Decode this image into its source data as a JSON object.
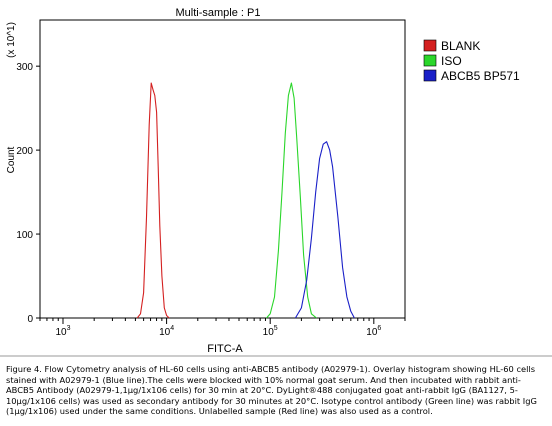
{
  "chart_data": {
    "type": "line",
    "title": "Multi-sample : P1",
    "xlabel": "FITC-A",
    "ylabel": "Count",
    "y_multiplier": "(x 10^1)",
    "x_scale": "log",
    "xlim": [
      600,
      2000000
    ],
    "ylim": [
      0,
      355
    ],
    "x_ticks": [
      {
        "value": 1000,
        "base": "10",
        "exp": "3"
      },
      {
        "value": 10000,
        "base": "10",
        "exp": "4"
      },
      {
        "value": 100000,
        "base": "10",
        "exp": "5"
      },
      {
        "value": 1000000,
        "base": "10",
        "exp": "6"
      }
    ],
    "y_ticks": [
      "0",
      "100",
      "200",
      "300"
    ],
    "y_tick_values": [
      0,
      100,
      200,
      300
    ],
    "legend_position": "right",
    "series": [
      {
        "name": "BLANK",
        "color": "#d42020",
        "x": [
          5200,
          5600,
          6000,
          6400,
          6800,
          7100,
          7400,
          7700,
          8000,
          8300,
          8600,
          9000,
          9500,
          10000,
          10600
        ],
        "y": [
          0,
          5,
          30,
          120,
          230,
          280,
          272,
          265,
          245,
          180,
          110,
          50,
          12,
          3,
          0
        ]
      },
      {
        "name": "ISO",
        "color": "#2ad62a",
        "x": [
          92000,
          100000,
          110000,
          120000,
          130000,
          140000,
          150000,
          160000,
          170000,
          180000,
          195000,
          210000,
          230000,
          250000,
          280000
        ],
        "y": [
          0,
          5,
          25,
          80,
          150,
          220,
          265,
          280,
          262,
          215,
          145,
          75,
          25,
          5,
          0
        ]
      },
      {
        "name": "ABCB5 BP571",
        "color": "#1a20c8",
        "x": [
          175000,
          200000,
          225000,
          250000,
          275000,
          300000,
          325000,
          350000,
          375000,
          400000,
          450000,
          500000,
          550000,
          600000,
          650000
        ],
        "y": [
          0,
          12,
          45,
          95,
          150,
          190,
          207,
          210,
          200,
          180,
          120,
          60,
          25,
          8,
          0
        ]
      }
    ]
  },
  "caption": "Figure 4. Flow Cytometry analysis of HL-60 cells using anti-ABCB5 antibody (A02979-1).  Overlay histogram showing HL-60 cells stained with A02979-1 (Blue line).The cells were blocked with 10% normal goat serum. And then incubated with rabbit anti-ABCB5 Antibody (A02979-1,1µg/1x106 cells) for 30 min at 20°C. DyLight®488 conjugated goat anti-rabbit IgG (BA1127, 5-10µg/1x106 cells) was used as secondary antibody for 30 minutes at 20°C. Isotype control antibody (Green line) was rabbit IgG (1µg/1x106) used under the same conditions. Unlabelled sample (Red line) was also used as a control."
}
